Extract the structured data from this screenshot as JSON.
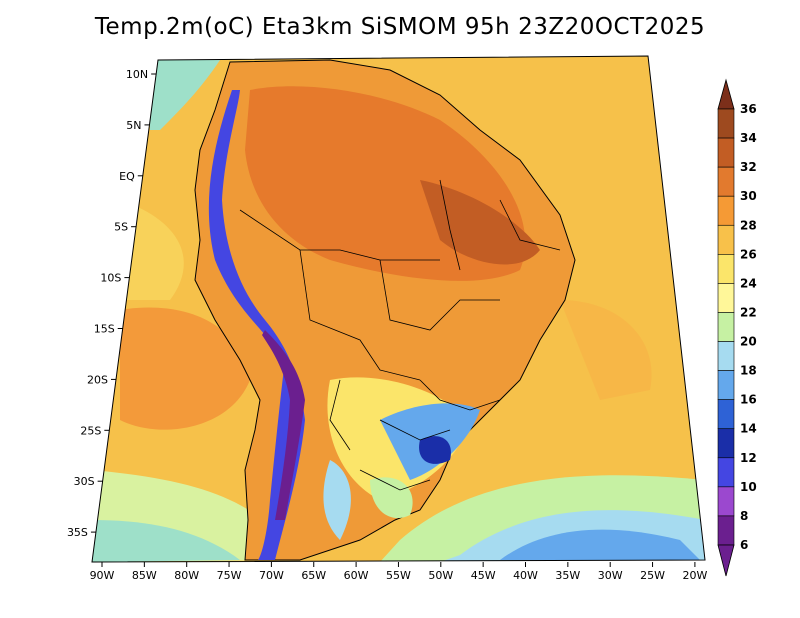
{
  "title": "Temp.2m(oC) Eta3km SiSMOM 95h 23Z20OCT2025",
  "map": {
    "lat_labels": [
      {
        "lat": 10,
        "label": "10N"
      },
      {
        "lat": 5,
        "label": "5N"
      },
      {
        "lat": 0,
        "label": "EQ"
      },
      {
        "lat": -5,
        "label": "5S"
      },
      {
        "lat": -10,
        "label": "10S"
      },
      {
        "lat": -15,
        "label": "15S"
      },
      {
        "lat": -20,
        "label": "20S"
      },
      {
        "lat": -25,
        "label": "25S"
      },
      {
        "lat": -30,
        "label": "30S"
      },
      {
        "lat": -35,
        "label": "35S"
      }
    ],
    "lon_labels": [
      {
        "lon": -90,
        "label": "90W"
      },
      {
        "lon": -85,
        "label": "85W"
      },
      {
        "lon": -80,
        "label": "80W"
      },
      {
        "lon": -75,
        "label": "75W"
      },
      {
        "lon": -70,
        "label": "70W"
      },
      {
        "lon": -65,
        "label": "65W"
      },
      {
        "lon": -60,
        "label": "60W"
      },
      {
        "lon": -55,
        "label": "55W"
      },
      {
        "lon": -50,
        "label": "50W"
      },
      {
        "lon": -45,
        "label": "45W"
      },
      {
        "lon": -40,
        "label": "40W"
      },
      {
        "lon": -35,
        "label": "35W"
      },
      {
        "lon": -30,
        "label": "30W"
      },
      {
        "lon": -25,
        "label": "25W"
      },
      {
        "lon": -20,
        "label": "20W"
      }
    ],
    "colors": {
      "ocean": "#f6c14a",
      "land_warm": "#ef9a37",
      "land_hot": "#e67a2c",
      "cool_ocean": "#b7ecb0",
      "outline": "#000000"
    }
  },
  "colorbar": {
    "labels": [
      "36",
      "34",
      "32",
      "30",
      "28",
      "26",
      "24",
      "22",
      "20",
      "18",
      "16",
      "14",
      "12",
      "10",
      "8",
      "6"
    ],
    "colors": [
      "#7c2f1a",
      "#9e4a1f",
      "#c25d24",
      "#e27a2e",
      "#f59a35",
      "#f8c14a",
      "#fbe56a",
      "#fff799",
      "#c6f1a3",
      "#a6dbf0",
      "#64a8ec",
      "#2e62d6",
      "#1a2ea8",
      "#4446e2",
      "#9b48cf",
      "#6b1f8f"
    ]
  }
}
